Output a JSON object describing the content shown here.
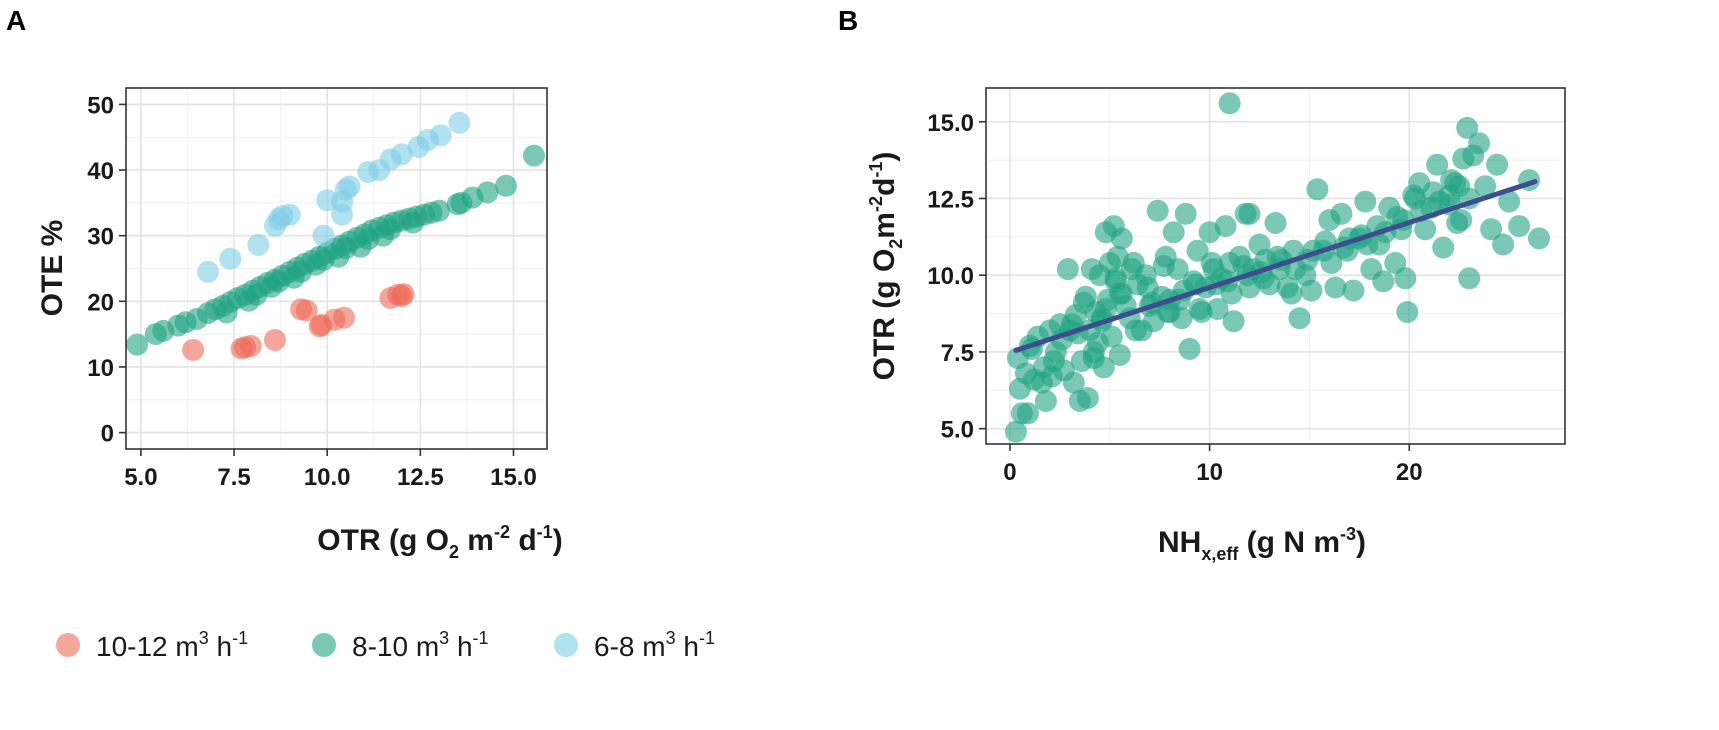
{
  "panels": {
    "a": {
      "letter": "A",
      "ylabel": "OTE %",
      "xlabel": {
        "pre": "OTR (g O",
        "sub": "2",
        "mid1": " m",
        "sup1": "-2",
        "mid2": " d",
        "sup2": "-1",
        "post": ")"
      }
    },
    "b": {
      "letter": "B",
      "ylabel": {
        "pre": "OTR (g O",
        "sub": "2",
        "mid1": "m",
        "sup1": "-2",
        "mid2": "d",
        "sup2": "-1",
        "post": ")"
      },
      "xlabel": {
        "pre": "NH",
        "sub": "x,eff",
        "mid": " (g N m",
        "sup": "-3",
        "post": ")"
      }
    }
  },
  "legend": {
    "items": [
      {
        "text": "10-12 m",
        "sup": "3",
        "unit": " h",
        "sup2": "-1",
        "color": "#EE6A59"
      },
      {
        "text": "8-10 m",
        "sup": "3",
        "unit": " h",
        "sup2": "-1",
        "color": "#22A484"
      },
      {
        "text": "6-8 m",
        "sup": "3",
        "unit": " h",
        "sup2": "-1",
        "color": "#7FCDE6"
      }
    ]
  },
  "chart_data": [
    {
      "type": "scatter",
      "title": "",
      "xlabel": "OTR (g O2 m-2 d-1)",
      "ylabel": "OTE %",
      "xlim": [
        4.6,
        15.9
      ],
      "ylim": [
        -2.5,
        52.5
      ],
      "xticks": [
        5.0,
        7.5,
        10.0,
        12.5,
        15.0
      ],
      "xtick_labels": [
        "5.0",
        "7.5",
        "10.0",
        "12.5",
        "15.0"
      ],
      "yticks": [
        0,
        10,
        20,
        30,
        40,
        50
      ],
      "ytick_labels": [
        "0",
        "10",
        "20",
        "30",
        "40",
        "50"
      ],
      "grid": true,
      "legend_position": "bottom",
      "series": [
        {
          "name": "10-12 m3 h-1",
          "color": "#EE6A59",
          "x": [
            6.4,
            7.7,
            7.8,
            7.95,
            8.6,
            9.3,
            9.45,
            9.8,
            9.85,
            10.2,
            10.45,
            11.7,
            11.9,
            12.0,
            12.05
          ],
          "y": [
            12.6,
            12.8,
            13.0,
            13.2,
            14.1,
            18.8,
            18.6,
            16.2,
            16.4,
            17.2,
            17.5,
            20.5,
            21.0,
            20.8,
            21.1
          ]
        },
        {
          "name": "8-10 m3 h-1",
          "color": "#22A484",
          "x": [
            4.9,
            5.4,
            5.6,
            6.0,
            6.2,
            6.5,
            6.8,
            7.0,
            7.2,
            7.4,
            7.6,
            7.8,
            8.0,
            8.2,
            8.4,
            8.6,
            8.8,
            9.0,
            9.2,
            9.4,
            9.6,
            9.8,
            10.0,
            10.2,
            10.4,
            10.6,
            10.8,
            11.0,
            11.2,
            11.4,
            11.6,
            11.8,
            12.0,
            12.2,
            12.4,
            12.6,
            12.8,
            13.0,
            13.5,
            13.6,
            13.9,
            14.3,
            14.8,
            15.55,
            7.3,
            7.9,
            8.5,
            9.1,
            9.7,
            10.3,
            10.9,
            11.5,
            8.1,
            8.7,
            9.3,
            9.9,
            10.5,
            11.1,
            11.7,
            12.3
          ],
          "y": [
            13.4,
            15.0,
            15.5,
            16.3,
            16.8,
            17.3,
            18.2,
            18.8,
            19.3,
            19.9,
            20.5,
            21.0,
            21.6,
            22.2,
            22.8,
            23.3,
            23.9,
            24.5,
            25.1,
            25.7,
            26.2,
            26.8,
            27.4,
            28.0,
            28.5,
            29.1,
            29.7,
            30.2,
            30.8,
            31.2,
            31.6,
            32.0,
            32.3,
            32.6,
            32.9,
            33.2,
            33.5,
            33.8,
            34.8,
            35.0,
            35.8,
            36.6,
            37.6,
            42.2,
            18.3,
            20.1,
            22.2,
            23.6,
            25.6,
            26.8,
            28.3,
            30.0,
            21.0,
            23.0,
            24.5,
            26.3,
            28.1,
            29.5,
            31.0,
            32.0
          ]
        },
        {
          "name": "6-8 m3 h-1",
          "color": "#7FCDE6",
          "x": [
            6.8,
            7.4,
            8.15,
            8.6,
            8.7,
            8.8,
            9.0,
            9.9,
            10.0,
            10.4,
            10.5,
            10.6,
            10.4,
            11.1,
            11.4,
            11.7,
            12.0,
            12.45,
            12.7,
            13.05,
            13.55
          ],
          "y": [
            24.5,
            26.5,
            28.6,
            31.5,
            32.5,
            33.0,
            33.2,
            30.0,
            35.4,
            35.2,
            37.0,
            37.5,
            33.2,
            39.7,
            40.0,
            41.6,
            42.4,
            43.5,
            44.6,
            45.3,
            47.2
          ]
        }
      ]
    },
    {
      "type": "scatter",
      "title": "",
      "xlabel": "NHx,eff (g N m-3)",
      "ylabel": "OTR (g O2m-2d-1)",
      "xlim": [
        -1.2,
        27.8
      ],
      "ylim": [
        4.5,
        16.1
      ],
      "xticks": [
        0,
        10,
        20
      ],
      "xtick_labels": [
        "0",
        "10",
        "20"
      ],
      "yticks": [
        5.0,
        7.5,
        10.0,
        12.5,
        15.0
      ],
      "ytick_labels": [
        "5.0",
        "7.5",
        "10.0",
        "12.5",
        "15.0"
      ],
      "grid": true,
      "series": [
        {
          "name": "8-10 m3 h-1",
          "color": "#22A484",
          "x": [
            0.3,
            0.4,
            0.5,
            0.6,
            0.8,
            0.9,
            1.0,
            1.2,
            1.4,
            1.6,
            1.8,
            2.0,
            2.1,
            2.3,
            2.5,
            2.7,
            2.9,
            3.0,
            3.2,
            3.3,
            3.5,
            3.6,
            3.8,
            3.9,
            4.0,
            4.1,
            4.2,
            4.3,
            4.4,
            4.5,
            4.6,
            4.7,
            4.8,
            4.9,
            5.0,
            5.1,
            5.2,
            5.3,
            5.4,
            5.5,
            5.6,
            5.8,
            6.0,
            6.2,
            6.4,
            6.6,
            6.8,
            7.0,
            7.2,
            7.4,
            7.6,
            7.8,
            8.0,
            8.2,
            8.4,
            8.6,
            8.8,
            9.0,
            9.2,
            9.4,
            9.6,
            9.8,
            10.0,
            10.2,
            10.4,
            10.6,
            10.8,
            11.0,
            11.2,
            11.5,
            11.8,
            12.0,
            12.2,
            12.5,
            12.8,
            13.0,
            13.3,
            13.6,
            13.9,
            14.2,
            14.5,
            14.8,
            15.1,
            15.4,
            15.7,
            16.0,
            16.3,
            16.6,
            16.9,
            17.2,
            17.5,
            17.8,
            18.1,
            18.4,
            18.7,
            19.0,
            19.3,
            19.6,
            19.9,
            20.2,
            20.5,
            20.8,
            21.1,
            21.4,
            21.7,
            22.0,
            22.3,
            22.6,
            22.9,
            23.2,
            23.5,
            23.8,
            24.1,
            24.4,
            24.7,
            25.0,
            25.5,
            26.0,
            26.5,
            2.2,
            3.1,
            3.7,
            4.6,
            5.3,
            6.1,
            6.9,
            7.7,
            8.5,
            9.3,
            10.1,
            10.9,
            11.7,
            12.6,
            13.4,
            14.3,
            15.2,
            16.1,
            17.0,
            17.9,
            18.8,
            19.7,
            20.6,
            21.5,
            22.4,
            1.1,
            1.7,
            2.6,
            3.4,
            4.2,
            4.8,
            5.6,
            6.3,
            7.1,
            7.9,
            8.7,
            9.5,
            10.3,
            11.1,
            11.9,
            12.7,
            13.5,
            14.1,
            14.9,
            15.8,
            16.7,
            17.6,
            18.5,
            19.4,
            20.3,
            21.2,
            22.1,
            23.0,
            11.0,
            22.5,
            22.7,
            23.0,
            19.8,
            22.0,
            12.0,
            8.0,
            5.5
          ],
          "y": [
            4.9,
            7.3,
            6.3,
            5.5,
            6.8,
            5.5,
            7.7,
            6.6,
            8.0,
            6.5,
            5.9,
            8.2,
            6.7,
            7.5,
            8.4,
            6.9,
            10.2,
            8.2,
            6.5,
            8.7,
            5.9,
            7.2,
            9.3,
            6.0,
            8.2,
            10.2,
            7.5,
            8.8,
            7.8,
            10.0,
            8.5,
            7.0,
            11.4,
            9.2,
            10.4,
            8.0,
            11.6,
            9.8,
            10.6,
            7.4,
            11.2,
            9.0,
            8.6,
            10.4,
            9.7,
            8.2,
            10.0,
            9.0,
            8.5,
            12.1,
            9.3,
            10.6,
            9.2,
            11.4,
            10.2,
            8.6,
            12.0,
            7.6,
            9.8,
            10.8,
            8.8,
            9.6,
            11.4,
            10.2,
            8.9,
            9.9,
            11.6,
            10.4,
            8.5,
            10.6,
            12.0,
            9.6,
            10.2,
            11.0,
            10.5,
            9.7,
            11.7,
            10.5,
            9.6,
            10.8,
            8.6,
            10.0,
            9.5,
            12.8,
            10.8,
            11.8,
            9.6,
            12.0,
            10.8,
            9.5,
            11.2,
            12.4,
            10.2,
            11.6,
            9.8,
            12.2,
            10.4,
            11.5,
            8.8,
            12.6,
            13.0,
            11.5,
            12.2,
            13.6,
            10.9,
            12.6,
            13.0,
            11.8,
            14.8,
            13.9,
            14.3,
            12.9,
            11.5,
            13.6,
            11.0,
            12.4,
            11.6,
            13.1,
            11.2,
            7.2,
            8.4,
            9.1,
            8.6,
            9.9,
            10.2,
            9.6,
            10.3,
            9.2,
            9.7,
            10.4,
            9.8,
            10.3,
            10.1,
            10.6,
            10.2,
            10.8,
            10.4,
            11.2,
            11.0,
            11.4,
            11.8,
            12.1,
            12.4,
            11.7,
            7.6,
            7.0,
            7.9,
            8.1,
            7.3,
            8.9,
            9.4,
            8.2,
            9.1,
            8.8,
            9.5,
            8.9,
            9.7,
            9.4,
            10.0,
            9.9,
            10.2,
            9.4,
            10.5,
            11.1,
            10.9,
            11.3,
            11.0,
            11.9,
            12.5,
            12.7,
            13.1,
            9.9,
            15.6,
            12.9,
            13.8,
            12.5,
            9.9,
            12.3,
            12.0,
            8.8,
            9.4
          ]
        }
      ],
      "trendline": {
        "x": [
          0.3,
          26.3
        ],
        "y": [
          7.55,
          13.05
        ],
        "color": "#3C4E8E"
      }
    }
  ]
}
